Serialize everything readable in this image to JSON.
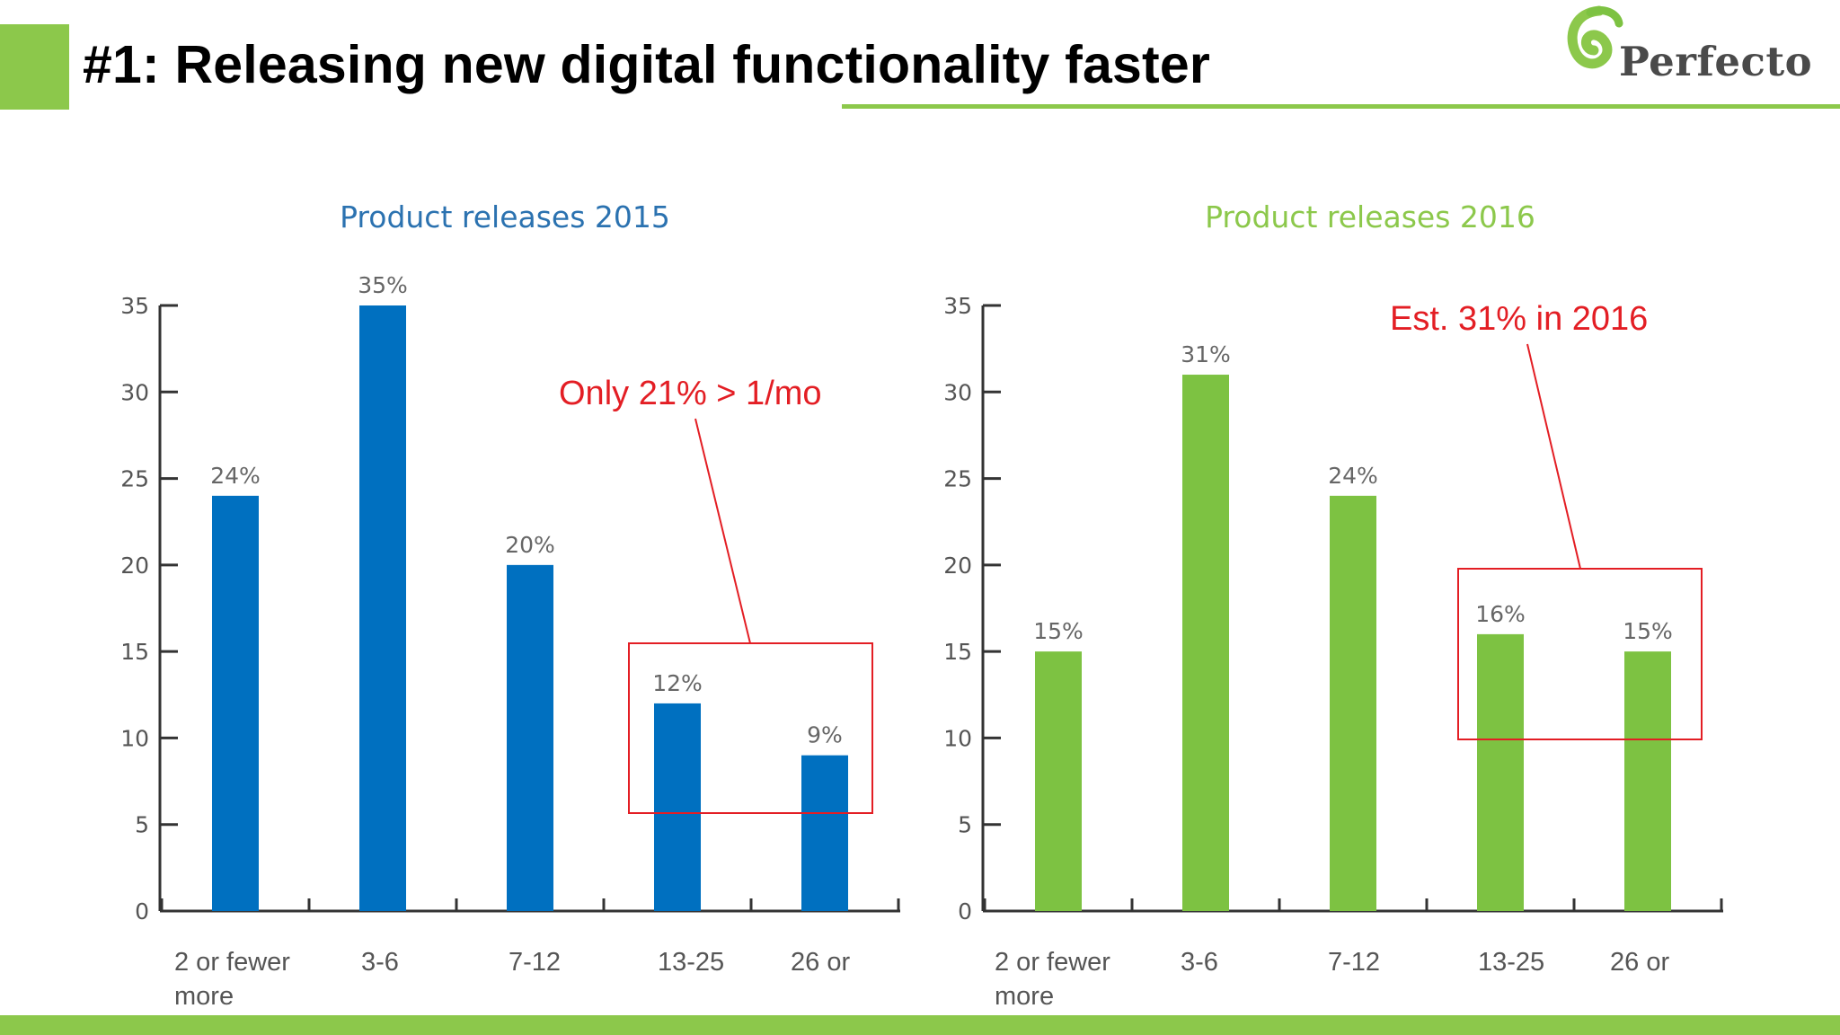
{
  "slide": {
    "title": "#1: Releasing new digital functionality faster",
    "logo_text": "Perfecto",
    "accent_color": "#8cc84b"
  },
  "chart_data": [
    {
      "type": "bar",
      "title": "Product releases 2015",
      "title_color": "#2b72b0",
      "categories": [
        [
          "2 or fewer",
          "more"
        ],
        [
          "3-6"
        ],
        [
          "7-12"
        ],
        [
          "13-25"
        ],
        [
          "26 or"
        ]
      ],
      "values": [
        24,
        35,
        20,
        12,
        9
      ],
      "value_labels": [
        "24%",
        "35%",
        "20%",
        "12%",
        "9%"
      ],
      "yticks": [
        0,
        5,
        10,
        15,
        20,
        25,
        30,
        35
      ],
      "ylim": [
        0,
        35
      ],
      "bar_color": "#0070c0",
      "annotation": {
        "text": "Only 21% > 1/mo",
        "color": "#e31e24",
        "highlight_categories": [
          3,
          4
        ]
      }
    },
    {
      "type": "bar",
      "title": "Product releases 2016",
      "title_color": "#8cc84b",
      "categories": [
        [
          "2 or fewer",
          "more"
        ],
        [
          "3-6"
        ],
        [
          "7-12"
        ],
        [
          "13-25"
        ],
        [
          "26 or"
        ]
      ],
      "values": [
        15,
        31,
        24,
        16,
        15
      ],
      "value_labels": [
        "15%",
        "31%",
        "24%",
        "16%",
        "15%"
      ],
      "yticks": [
        0,
        5,
        10,
        15,
        20,
        25,
        30,
        35
      ],
      "ylim": [
        0,
        35
      ],
      "bar_color": "#7dc242",
      "annotation": {
        "text": "Est. 31% in 2016",
        "color": "#e31e24",
        "highlight_categories": [
          3,
          4
        ]
      }
    }
  ]
}
